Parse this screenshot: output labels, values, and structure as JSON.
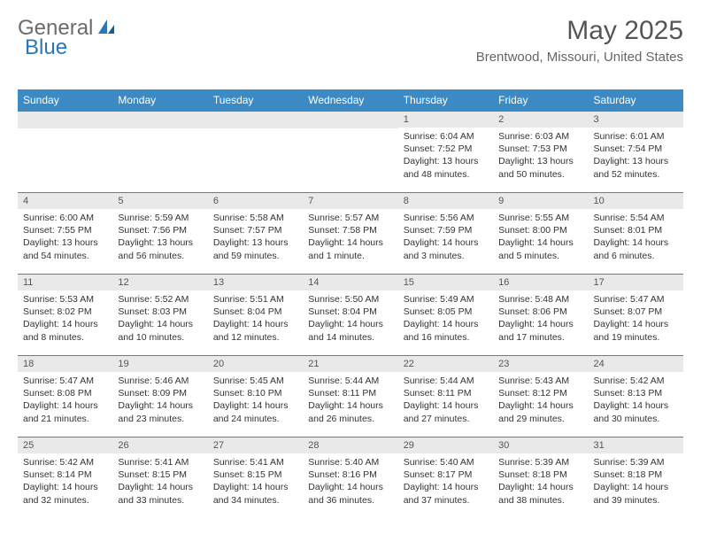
{
  "logo": {
    "word1": "General",
    "word2": "Blue"
  },
  "title": "May 2025",
  "location": "Brentwood, Missouri, United States",
  "colors": {
    "header_bg": "#3b8ac4",
    "header_fg": "#ffffff",
    "row_border": "#3b8ac4",
    "daynum_bg": "#e9e9e9",
    "text": "#333333",
    "title_color": "#555555",
    "logo_gray": "#6b6b6b",
    "logo_blue": "#2a76b8",
    "background": "#ffffff"
  },
  "fonts": {
    "title_size": 30,
    "location_size": 15,
    "dayheader_size": 12,
    "body_size": 10.5
  },
  "day_headers": [
    "Sunday",
    "Monday",
    "Tuesday",
    "Wednesday",
    "Thursday",
    "Friday",
    "Saturday"
  ],
  "weeks": [
    [
      null,
      null,
      null,
      null,
      {
        "n": "1",
        "sr": "Sunrise: 6:04 AM",
        "ss": "Sunset: 7:52 PM",
        "d1": "Daylight: 13 hours",
        "d2": "and 48 minutes."
      },
      {
        "n": "2",
        "sr": "Sunrise: 6:03 AM",
        "ss": "Sunset: 7:53 PM",
        "d1": "Daylight: 13 hours",
        "d2": "and 50 minutes."
      },
      {
        "n": "3",
        "sr": "Sunrise: 6:01 AM",
        "ss": "Sunset: 7:54 PM",
        "d1": "Daylight: 13 hours",
        "d2": "and 52 minutes."
      }
    ],
    [
      {
        "n": "4",
        "sr": "Sunrise: 6:00 AM",
        "ss": "Sunset: 7:55 PM",
        "d1": "Daylight: 13 hours",
        "d2": "and 54 minutes."
      },
      {
        "n": "5",
        "sr": "Sunrise: 5:59 AM",
        "ss": "Sunset: 7:56 PM",
        "d1": "Daylight: 13 hours",
        "d2": "and 56 minutes."
      },
      {
        "n": "6",
        "sr": "Sunrise: 5:58 AM",
        "ss": "Sunset: 7:57 PM",
        "d1": "Daylight: 13 hours",
        "d2": "and 59 minutes."
      },
      {
        "n": "7",
        "sr": "Sunrise: 5:57 AM",
        "ss": "Sunset: 7:58 PM",
        "d1": "Daylight: 14 hours",
        "d2": "and 1 minute."
      },
      {
        "n": "8",
        "sr": "Sunrise: 5:56 AM",
        "ss": "Sunset: 7:59 PM",
        "d1": "Daylight: 14 hours",
        "d2": "and 3 minutes."
      },
      {
        "n": "9",
        "sr": "Sunrise: 5:55 AM",
        "ss": "Sunset: 8:00 PM",
        "d1": "Daylight: 14 hours",
        "d2": "and 5 minutes."
      },
      {
        "n": "10",
        "sr": "Sunrise: 5:54 AM",
        "ss": "Sunset: 8:01 PM",
        "d1": "Daylight: 14 hours",
        "d2": "and 6 minutes."
      }
    ],
    [
      {
        "n": "11",
        "sr": "Sunrise: 5:53 AM",
        "ss": "Sunset: 8:02 PM",
        "d1": "Daylight: 14 hours",
        "d2": "and 8 minutes."
      },
      {
        "n": "12",
        "sr": "Sunrise: 5:52 AM",
        "ss": "Sunset: 8:03 PM",
        "d1": "Daylight: 14 hours",
        "d2": "and 10 minutes."
      },
      {
        "n": "13",
        "sr": "Sunrise: 5:51 AM",
        "ss": "Sunset: 8:04 PM",
        "d1": "Daylight: 14 hours",
        "d2": "and 12 minutes."
      },
      {
        "n": "14",
        "sr": "Sunrise: 5:50 AM",
        "ss": "Sunset: 8:04 PM",
        "d1": "Daylight: 14 hours",
        "d2": "and 14 minutes."
      },
      {
        "n": "15",
        "sr": "Sunrise: 5:49 AM",
        "ss": "Sunset: 8:05 PM",
        "d1": "Daylight: 14 hours",
        "d2": "and 16 minutes."
      },
      {
        "n": "16",
        "sr": "Sunrise: 5:48 AM",
        "ss": "Sunset: 8:06 PM",
        "d1": "Daylight: 14 hours",
        "d2": "and 17 minutes."
      },
      {
        "n": "17",
        "sr": "Sunrise: 5:47 AM",
        "ss": "Sunset: 8:07 PM",
        "d1": "Daylight: 14 hours",
        "d2": "and 19 minutes."
      }
    ],
    [
      {
        "n": "18",
        "sr": "Sunrise: 5:47 AM",
        "ss": "Sunset: 8:08 PM",
        "d1": "Daylight: 14 hours",
        "d2": "and 21 minutes."
      },
      {
        "n": "19",
        "sr": "Sunrise: 5:46 AM",
        "ss": "Sunset: 8:09 PM",
        "d1": "Daylight: 14 hours",
        "d2": "and 23 minutes."
      },
      {
        "n": "20",
        "sr": "Sunrise: 5:45 AM",
        "ss": "Sunset: 8:10 PM",
        "d1": "Daylight: 14 hours",
        "d2": "and 24 minutes."
      },
      {
        "n": "21",
        "sr": "Sunrise: 5:44 AM",
        "ss": "Sunset: 8:11 PM",
        "d1": "Daylight: 14 hours",
        "d2": "and 26 minutes."
      },
      {
        "n": "22",
        "sr": "Sunrise: 5:44 AM",
        "ss": "Sunset: 8:11 PM",
        "d1": "Daylight: 14 hours",
        "d2": "and 27 minutes."
      },
      {
        "n": "23",
        "sr": "Sunrise: 5:43 AM",
        "ss": "Sunset: 8:12 PM",
        "d1": "Daylight: 14 hours",
        "d2": "and 29 minutes."
      },
      {
        "n": "24",
        "sr": "Sunrise: 5:42 AM",
        "ss": "Sunset: 8:13 PM",
        "d1": "Daylight: 14 hours",
        "d2": "and 30 minutes."
      }
    ],
    [
      {
        "n": "25",
        "sr": "Sunrise: 5:42 AM",
        "ss": "Sunset: 8:14 PM",
        "d1": "Daylight: 14 hours",
        "d2": "and 32 minutes."
      },
      {
        "n": "26",
        "sr": "Sunrise: 5:41 AM",
        "ss": "Sunset: 8:15 PM",
        "d1": "Daylight: 14 hours",
        "d2": "and 33 minutes."
      },
      {
        "n": "27",
        "sr": "Sunrise: 5:41 AM",
        "ss": "Sunset: 8:15 PM",
        "d1": "Daylight: 14 hours",
        "d2": "and 34 minutes."
      },
      {
        "n": "28",
        "sr": "Sunrise: 5:40 AM",
        "ss": "Sunset: 8:16 PM",
        "d1": "Daylight: 14 hours",
        "d2": "and 36 minutes."
      },
      {
        "n": "29",
        "sr": "Sunrise: 5:40 AM",
        "ss": "Sunset: 8:17 PM",
        "d1": "Daylight: 14 hours",
        "d2": "and 37 minutes."
      },
      {
        "n": "30",
        "sr": "Sunrise: 5:39 AM",
        "ss": "Sunset: 8:18 PM",
        "d1": "Daylight: 14 hours",
        "d2": "and 38 minutes."
      },
      {
        "n": "31",
        "sr": "Sunrise: 5:39 AM",
        "ss": "Sunset: 8:18 PM",
        "d1": "Daylight: 14 hours",
        "d2": "and 39 minutes."
      }
    ]
  ]
}
